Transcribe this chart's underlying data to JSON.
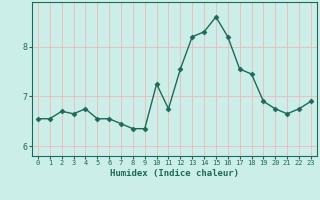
{
  "x": [
    0,
    1,
    2,
    3,
    4,
    5,
    6,
    7,
    8,
    9,
    10,
    11,
    12,
    13,
    14,
    15,
    16,
    17,
    18,
    19,
    20,
    21,
    22,
    23
  ],
  "y": [
    6.55,
    6.55,
    6.7,
    6.65,
    6.75,
    6.55,
    6.55,
    6.45,
    6.35,
    6.35,
    7.25,
    6.75,
    7.55,
    8.2,
    8.3,
    8.6,
    8.2,
    7.55,
    7.45,
    6.9,
    6.75,
    6.65,
    6.75,
    6.9
  ],
  "line_color": "#1a6b5a",
  "marker": "D",
  "marker_size": 2.5,
  "linewidth": 1.0,
  "xlabel": "Humidex (Indice chaleur)",
  "xlim": [
    -0.5,
    23.5
  ],
  "ylim": [
    5.8,
    8.9
  ],
  "yticks": [
    6,
    7,
    8
  ],
  "xticks": [
    0,
    1,
    2,
    3,
    4,
    5,
    6,
    7,
    8,
    9,
    10,
    11,
    12,
    13,
    14,
    15,
    16,
    17,
    18,
    19,
    20,
    21,
    22,
    23
  ],
  "bg_color": "#cceee8",
  "grid_color": "#f2b8b8",
  "tick_color": "#1a6b5a",
  "label_color": "#1a6b5a"
}
